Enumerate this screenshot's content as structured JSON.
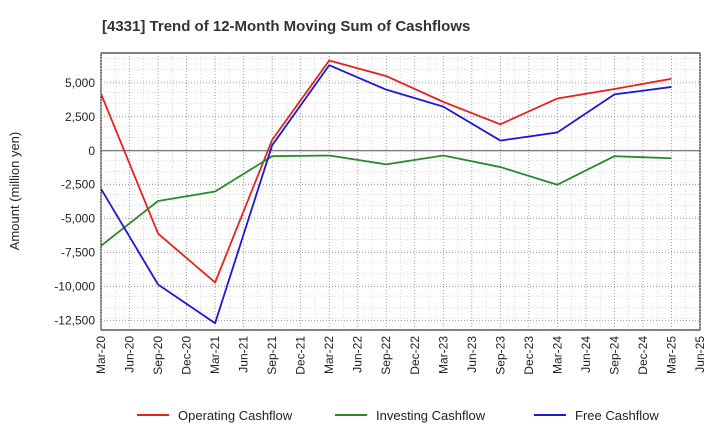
{
  "chart_data": {
    "type": "line",
    "title": "[4331]  Trend of 12-Month Moving Sum of Cashflows",
    "xlabel": "",
    "ylabel": "Amount (million yen)",
    "x": [
      "Mar-20",
      "Jun-20",
      "Sep-20",
      "Dec-20",
      "Mar-21",
      "Jun-21",
      "Sep-21",
      "Dec-21",
      "Mar-22",
      "Jun-22",
      "Sep-22",
      "Dec-22",
      "Mar-23",
      "Jun-23",
      "Sep-23",
      "Dec-23",
      "Mar-24",
      "Jun-24",
      "Sep-24",
      "Dec-24",
      "Mar-25",
      "Jun-25"
    ],
    "ylim": [
      -13200,
      7200
    ],
    "yticks": [
      5000,
      2500,
      0,
      -2500,
      -5000,
      -7500,
      -10000,
      -12500
    ],
    "ytick_labels": [
      "5,000",
      "2,500",
      "0",
      "-2,500",
      "-5,000",
      "-7,500",
      "-10,000",
      "-12,500"
    ],
    "grid": true,
    "legend_position": "bottom",
    "series": [
      {
        "name": "Operating Cashflow",
        "color": "#e8221b",
        "points": [
          [
            "Mar-20",
            4200
          ],
          [
            "Sep-20",
            -6100
          ],
          [
            "Mar-21",
            -9700
          ],
          [
            "Sep-21",
            800
          ],
          [
            "Mar-22",
            6650
          ],
          [
            "Sep-22",
            5500
          ],
          [
            "Mar-23",
            3600
          ],
          [
            "Sep-23",
            1950
          ],
          [
            "Mar-24",
            3850
          ],
          [
            "Sep-24",
            4550
          ],
          [
            "Mar-25",
            5300
          ]
        ]
      },
      {
        "name": "Investing Cashflow",
        "color": "#2a8a2a",
        "points": [
          [
            "Mar-20",
            -7000
          ],
          [
            "Sep-20",
            -3700
          ],
          [
            "Mar-21",
            -3000
          ],
          [
            "Sep-21",
            -400
          ],
          [
            "Mar-22",
            -350
          ],
          [
            "Sep-22",
            -1000
          ],
          [
            "Mar-23",
            -350
          ],
          [
            "Sep-23",
            -1200
          ],
          [
            "Mar-24",
            -2500
          ],
          [
            "Sep-24",
            -400
          ],
          [
            "Mar-25",
            -550
          ]
        ]
      },
      {
        "name": "Free Cashflow",
        "color": "#1a1ad6",
        "points": [
          [
            "Mar-20",
            -2800
          ],
          [
            "Sep-20",
            -9850
          ],
          [
            "Mar-21",
            -12700
          ],
          [
            "Sep-21",
            400
          ],
          [
            "Mar-22",
            6300
          ],
          [
            "Sep-22",
            4500
          ],
          [
            "Mar-23",
            3250
          ],
          [
            "Sep-23",
            750
          ],
          [
            "Mar-24",
            1350
          ],
          [
            "Sep-24",
            4150
          ],
          [
            "Mar-25",
            4700
          ]
        ]
      }
    ]
  }
}
